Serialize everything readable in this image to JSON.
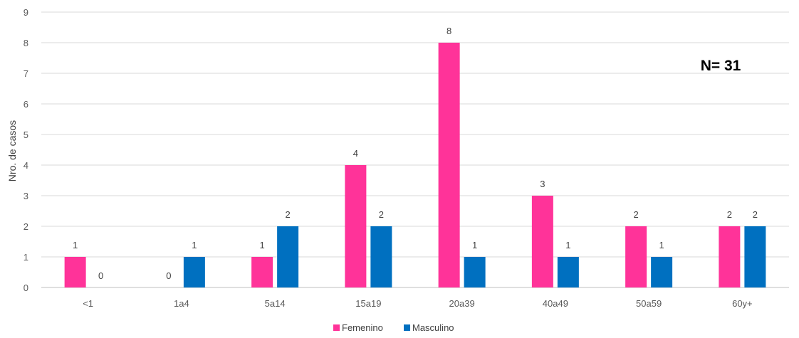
{
  "chart_data": {
    "type": "bar",
    "title": "",
    "xlabel": "",
    "ylabel": "Nro. de casos",
    "annotation": "N= 31",
    "categories": [
      "<1",
      "1a4",
      "5a14",
      "15a19",
      "20a39",
      "40a49",
      "50a59",
      "60y+"
    ],
    "series": [
      {
        "name": "Femenino",
        "color": "#ff3399",
        "values": [
          1,
          0,
          1,
          4,
          8,
          3,
          2,
          2
        ]
      },
      {
        "name": "Masculino",
        "color": "#0070c0",
        "values": [
          0,
          1,
          2,
          2,
          1,
          1,
          1,
          2
        ]
      }
    ],
    "yticks": [
      "0",
      "1",
      "2",
      "3",
      "4",
      "5",
      "6",
      "7",
      "8",
      "9"
    ],
    "ylim": [
      0,
      9
    ],
    "grid": true,
    "legend": "bottom-center"
  }
}
